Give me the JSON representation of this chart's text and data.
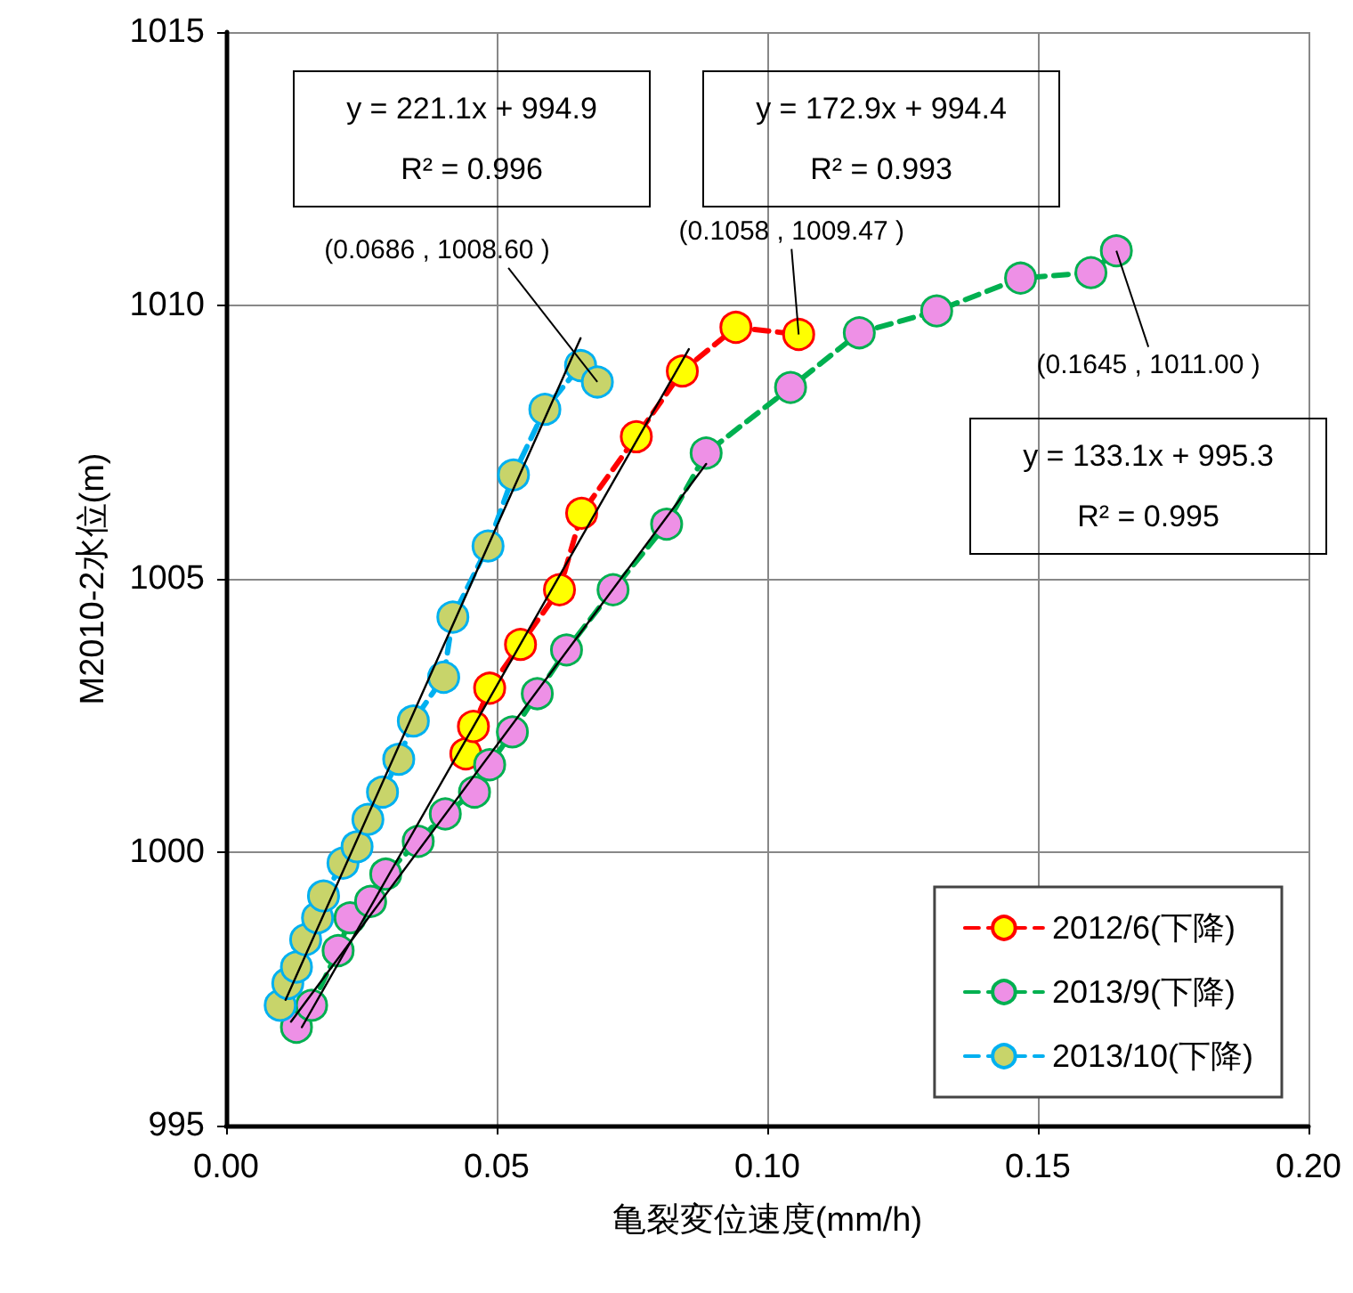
{
  "chart_data": {
    "type": "line",
    "xlabel": "亀裂変位速度(mm/h)",
    "ylabel": "M2010-2水位(m)",
    "xlim": [
      0,
      0.2
    ],
    "xticks": [
      {
        "value": 0,
        "label": "0.00"
      },
      {
        "value": 0.05,
        "label": "0.05"
      },
      {
        "value": 0.1,
        "label": "0.10"
      },
      {
        "value": 0.15,
        "label": "0.15"
      },
      {
        "value": 0.2,
        "label": "0.20"
      }
    ],
    "ylim": [
      995,
      1015
    ],
    "yticks": [
      995,
      1000,
      1005,
      1010,
      1015
    ],
    "grid": true,
    "legend": "bottom right",
    "marker": "circle",
    "line_style": "dashed",
    "series": [
      {
        "name": "2012/6(下降)",
        "color": "#ff0000",
        "x": [
          0.0443,
          0.0457,
          0.0487,
          0.0544,
          0.0616,
          0.0657,
          0.0758,
          0.0843,
          0.0942,
          0.1058
        ],
        "values": [
          1001.8,
          1002.3,
          1003.0,
          1003.8,
          1004.8,
          1006.2,
          1007.6,
          1008.8,
          1009.6,
          1009.47
        ]
      },
      {
        "name": "2013/9(下降)",
        "color": "#00b050",
        "x": [
          0.013,
          0.0158,
          0.0207,
          0.0229,
          0.0267,
          0.0295,
          0.0355,
          0.0405,
          0.0459,
          0.0487,
          0.0529,
          0.0575,
          0.0629,
          0.0715,
          0.0814,
          0.0887,
          0.1043,
          0.117,
          0.1313,
          0.1468,
          0.1598,
          0.1645
        ],
        "values": [
          996.8,
          997.2,
          998.2,
          998.8,
          999.1,
          999.6,
          1000.2,
          1000.7,
          1001.1,
          1001.6,
          1002.2,
          1002.9,
          1003.7,
          1004.8,
          1006.0,
          1007.3,
          1008.5,
          1009.5,
          1009.9,
          1010.5,
          1010.6,
          1011.0
        ]
      },
      {
        "name": "2013/10(下降)",
        "color": "#00b0f0",
        "x": [
          0.01,
          0.0114,
          0.013,
          0.0147,
          0.0169,
          0.018,
          0.0216,
          0.0242,
          0.0262,
          0.0289,
          0.0319,
          0.0346,
          0.0402,
          0.0419,
          0.0484,
          0.0531,
          0.0589,
          0.0655,
          0.0686
        ],
        "values": [
          997.2,
          997.6,
          997.9,
          998.4,
          998.8,
          999.2,
          999.8,
          1000.1,
          1000.6,
          1001.1,
          1001.7,
          1002.4,
          1003.2,
          1004.3,
          1005.6,
          1006.9,
          1008.1,
          1008.9,
          1008.6
        ]
      },
      {
        "type": "line",
        "color": "#000000",
        "marker": "none",
        "line_style": "solid",
        "x": [
          0.014,
          0.0855
        ],
        "values": [
          996.8,
          1009.2
        ]
      },
      {
        "type": "line",
        "color": "#000000",
        "marker": "none",
        "line_style": "solid",
        "x": [
          0.012,
          0.0887
        ],
        "values": [
          996.9,
          1007.1
        ]
      },
      {
        "type": "line",
        "color": "#000000",
        "marker": "none",
        "line_style": "solid",
        "x": [
          0.011,
          0.0655
        ],
        "values": [
          997.3,
          1009.4
        ]
      }
    ],
    "annotations": [
      "y = 221.1x + 994.9\nR² = 0.996",
      "y = 172.9x + 994.4\nR² = 0.993",
      "y = 133.1x + 995.3\nR² = 0.995",
      {
        "text": "(0.0686 , 1008.60 )",
        "x": 0.0686,
        "y": 1008.6
      },
      {
        "text": "(0.1058 , 1009.47 )",
        "x": 0.1058,
        "y": 1009.47
      },
      {
        "text": "(0.1645 , 1011.00 )",
        "x": 0.1645,
        "y": 1011.0
      }
    ]
  }
}
